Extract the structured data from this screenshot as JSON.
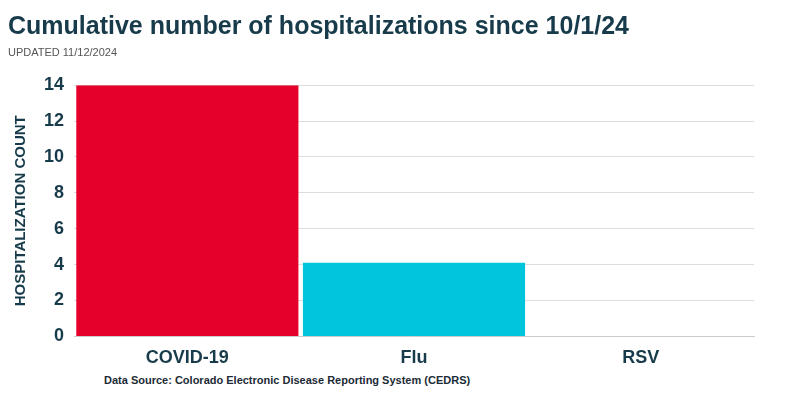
{
  "chart_data": {
    "type": "bar",
    "title": "Cumulative number of hospitalizations since 10/1/24",
    "subtitle": "UPDATED 11/12/2024",
    "y_label": "HOSPITALIZATION COUNT",
    "annotations": [
      "Data Source: Colorado Electronic Disease Reporting System (CEDRS)"
    ],
    "categories": [
      "COVID-19",
      "Flu",
      "RSV"
    ],
    "values": [
      14,
      4.1,
      0
    ],
    "colors": [
      "#e4002b",
      "#00c5dc",
      "#1f3a5f"
    ],
    "ylim": [
      0,
      14
    ],
    "yticks": [
      0,
      2,
      4,
      6,
      8,
      10,
      12,
      14
    ],
    "grid": true
  }
}
